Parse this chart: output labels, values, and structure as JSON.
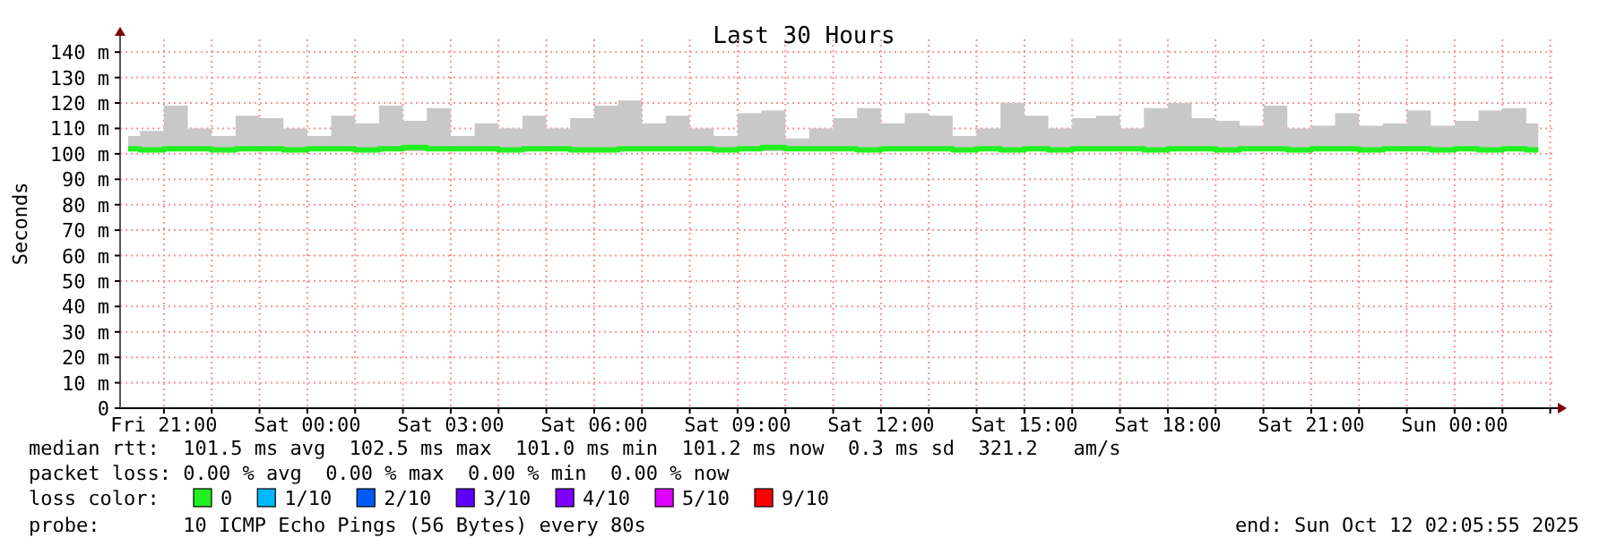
{
  "chart_data": {
    "type": "step",
    "title": "Last 30 Hours",
    "ylabel": "Seconds",
    "legend_title": "loss color:",
    "legend": "bottom",
    "grid": true,
    "xlim": [
      "2025-10-10T20:05",
      "2025-10-12T02:05"
    ],
    "xticks": [
      {
        "value": "2025-10-10T21:00",
        "label": "Fri 21:00"
      },
      {
        "value": "2025-10-10T22:00",
        "label": null
      },
      {
        "value": "2025-10-10T23:00",
        "label": null
      },
      {
        "value": "2025-10-11T00:00",
        "label": "Sat 00:00"
      },
      {
        "value": "2025-10-11T01:00",
        "label": null
      },
      {
        "value": "2025-10-11T02:00",
        "label": null
      },
      {
        "value": "2025-10-11T03:00",
        "label": "Sat 03:00"
      },
      {
        "value": "2025-10-11T04:00",
        "label": null
      },
      {
        "value": "2025-10-11T05:00",
        "label": null
      },
      {
        "value": "2025-10-11T06:00",
        "label": "Sat 06:00"
      },
      {
        "value": "2025-10-11T07:00",
        "label": null
      },
      {
        "value": "2025-10-11T08:00",
        "label": null
      },
      {
        "value": "2025-10-11T09:00",
        "label": "Sat 09:00"
      },
      {
        "value": "2025-10-11T10:00",
        "label": null
      },
      {
        "value": "2025-10-11T11:00",
        "label": null
      },
      {
        "value": "2025-10-11T12:00",
        "label": "Sat 12:00"
      },
      {
        "value": "2025-10-11T13:00",
        "label": null
      },
      {
        "value": "2025-10-11T14:00",
        "label": null
      },
      {
        "value": "2025-10-11T15:00",
        "label": "Sat 15:00"
      },
      {
        "value": "2025-10-11T16:00",
        "label": null
      },
      {
        "value": "2025-10-11T17:00",
        "label": null
      },
      {
        "value": "2025-10-11T18:00",
        "label": "Sat 18:00"
      },
      {
        "value": "2025-10-11T19:00",
        "label": null
      },
      {
        "value": "2025-10-11T20:00",
        "label": null
      },
      {
        "value": "2025-10-11T21:00",
        "label": "Sat 21:00"
      },
      {
        "value": "2025-10-11T22:00",
        "label": null
      },
      {
        "value": "2025-10-11T23:00",
        "label": null
      },
      {
        "value": "2025-10-12T00:00",
        "label": "Sun 00:00"
      },
      {
        "value": "2025-10-12T01:00",
        "label": null
      },
      {
        "value": "2025-10-12T02:00",
        "label": null
      }
    ],
    "ylim": [
      0,
      145
    ],
    "yticks": [
      {
        "value": 0,
        "label": "0"
      },
      {
        "value": 10,
        "label": "10 m"
      },
      {
        "value": 20,
        "label": "20 m"
      },
      {
        "value": 30,
        "label": "30 m"
      },
      {
        "value": 40,
        "label": "40 m"
      },
      {
        "value": 50,
        "label": "50 m"
      },
      {
        "value": 60,
        "label": "60 m"
      },
      {
        "value": 70,
        "label": "70 m"
      },
      {
        "value": 80,
        "label": "80 m"
      },
      {
        "value": 90,
        "label": "90 m"
      },
      {
        "value": 100,
        "label": "100 m"
      },
      {
        "value": 110,
        "label": "110 m"
      },
      {
        "value": 120,
        "label": "120 m"
      },
      {
        "value": 130,
        "label": "130 m"
      },
      {
        "value": 140,
        "label": "140 m"
      }
    ],
    "x": [
      "2025-10-10T20:15",
      "2025-10-10T20:45",
      "2025-10-10T21:15",
      "2025-10-10T21:45",
      "2025-10-10T22:15",
      "2025-10-10T22:45",
      "2025-10-10T23:15",
      "2025-10-10T23:45",
      "2025-10-11T00:15",
      "2025-10-11T00:45",
      "2025-10-11T01:15",
      "2025-10-11T01:45",
      "2025-10-11T02:15",
      "2025-10-11T02:45",
      "2025-10-11T03:15",
      "2025-10-11T03:45",
      "2025-10-11T04:15",
      "2025-10-11T04:45",
      "2025-10-11T05:15",
      "2025-10-11T05:45",
      "2025-10-11T06:15",
      "2025-10-11T06:45",
      "2025-10-11T07:15",
      "2025-10-11T07:45",
      "2025-10-11T08:15",
      "2025-10-11T08:45",
      "2025-10-11T09:15",
      "2025-10-11T09:45",
      "2025-10-11T10:15",
      "2025-10-11T10:45",
      "2025-10-11T11:15",
      "2025-10-11T11:45",
      "2025-10-11T12:15",
      "2025-10-11T12:45",
      "2025-10-11T13:15",
      "2025-10-11T13:45",
      "2025-10-11T14:15",
      "2025-10-11T14:45",
      "2025-10-11T15:15",
      "2025-10-11T15:45",
      "2025-10-11T16:15",
      "2025-10-11T16:45",
      "2025-10-11T17:15",
      "2025-10-11T17:45",
      "2025-10-11T18:15",
      "2025-10-11T18:45",
      "2025-10-11T19:15",
      "2025-10-11T19:45",
      "2025-10-11T20:15",
      "2025-10-11T20:45",
      "2025-10-11T21:15",
      "2025-10-11T21:45",
      "2025-10-11T22:15",
      "2025-10-11T22:45",
      "2025-10-11T23:15",
      "2025-10-11T23:45",
      "2025-10-12T00:15",
      "2025-10-12T00:45",
      "2025-10-12T01:15",
      "2025-10-12T01:45"
    ],
    "series": [
      {
        "name": "0",
        "color": "#20f020",
        "values": [
          102,
          101.5,
          102,
          102,
          101.5,
          102,
          102,
          101.5,
          102,
          102,
          101.5,
          102,
          102.5,
          102,
          102,
          102,
          101.5,
          102,
          102,
          101.5,
          101.5,
          102,
          102,
          102,
          102,
          101.5,
          102,
          102.5,
          102,
          102,
          102,
          101.5,
          102,
          102,
          102,
          101.5,
          102,
          101.5,
          102,
          101.5,
          102,
          102,
          102,
          101.5,
          102,
          102,
          101.5,
          102,
          102,
          101.5,
          102,
          102,
          101.5,
          102,
          102,
          101.5,
          102,
          101.5,
          102,
          101.5
        ],
        "lower": [
          101,
          101,
          101,
          101,
          101,
          101,
          101,
          101,
          101,
          101,
          101,
          101,
          101,
          101,
          101,
          101,
          101,
          101,
          101,
          101,
          101,
          101,
          101,
          101,
          101,
          101,
          101,
          101,
          101,
          101,
          101,
          101,
          101,
          101,
          101,
          101,
          101,
          101,
          101,
          101,
          101,
          101,
          101,
          101,
          101,
          101,
          101,
          101,
          101,
          101,
          101,
          101,
          101,
          101,
          101,
          101,
          101,
          101,
          101,
          101
        ],
        "upper": [
          107,
          109,
          119,
          110,
          107,
          115,
          114,
          110,
          107,
          115,
          112,
          119,
          113,
          118,
          107,
          112,
          110,
          115,
          110,
          114,
          119,
          121,
          112,
          115,
          110,
          107,
          116,
          117,
          106,
          110,
          114,
          118,
          112,
          116,
          115,
          107,
          110,
          120,
          115,
          110,
          114,
          115,
          110,
          118,
          120,
          114,
          113,
          111,
          119,
          110,
          111,
          116,
          111,
          112,
          117,
          111,
          113,
          117,
          118,
          112
        ]
      },
      {
        "name": "1/10",
        "color": "#00b8ff",
        "values": [
          null,
          null,
          null,
          null,
          null,
          null,
          null,
          null,
          null,
          null,
          null,
          null,
          null,
          null,
          null,
          null,
          null,
          null,
          null,
          null,
          null,
          null,
          null,
          null,
          null,
          null,
          null,
          null,
          null,
          null,
          null,
          null,
          null,
          null,
          null,
          null,
          null,
          null,
          null,
          null,
          null,
          null,
          null,
          null,
          null,
          null,
          null,
          null,
          null,
          null,
          null,
          null,
          null,
          null,
          null,
          null,
          null,
          null,
          null,
          null
        ]
      },
      {
        "name": "2/10",
        "color": "#0059ff",
        "values": [
          null,
          null,
          null,
          null,
          null,
          null,
          null,
          null,
          null,
          null,
          null,
          null,
          null,
          null,
          null,
          null,
          null,
          null,
          null,
          null,
          null,
          null,
          null,
          null,
          null,
          null,
          null,
          null,
          null,
          null,
          null,
          null,
          null,
          null,
          null,
          null,
          null,
          null,
          null,
          null,
          null,
          null,
          null,
          null,
          null,
          null,
          null,
          null,
          null,
          null,
          null,
          null,
          null,
          null,
          null,
          null,
          null,
          null,
          null,
          null
        ]
      },
      {
        "name": "3/10",
        "color": "#5e00ff",
        "values": [
          null,
          null,
          null,
          null,
          null,
          null,
          null,
          null,
          null,
          null,
          null,
          null,
          null,
          null,
          null,
          null,
          null,
          null,
          null,
          null,
          null,
          null,
          null,
          null,
          null,
          null,
          null,
          null,
          null,
          null,
          null,
          null,
          null,
          null,
          null,
          null,
          null,
          null,
          null,
          null,
          null,
          null,
          null,
          null,
          null,
          null,
          null,
          null,
          null,
          null,
          null,
          null,
          null,
          null,
          null,
          null,
          null,
          null,
          null,
          null
        ]
      },
      {
        "name": "4/10",
        "color": "#7e00ff",
        "values": [
          null,
          null,
          null,
          null,
          null,
          null,
          null,
          null,
          null,
          null,
          null,
          null,
          null,
          null,
          null,
          null,
          null,
          null,
          null,
          null,
          null,
          null,
          null,
          null,
          null,
          null,
          null,
          null,
          null,
          null,
          null,
          null,
          null,
          null,
          null,
          null,
          null,
          null,
          null,
          null,
          null,
          null,
          null,
          null,
          null,
          null,
          null,
          null,
          null,
          null,
          null,
          null,
          null,
          null,
          null,
          null,
          null,
          null,
          null,
          null
        ]
      },
      {
        "name": "5/10",
        "color": "#dd00ff",
        "values": [
          null,
          null,
          null,
          null,
          null,
          null,
          null,
          null,
          null,
          null,
          null,
          null,
          null,
          null,
          null,
          null,
          null,
          null,
          null,
          null,
          null,
          null,
          null,
          null,
          null,
          null,
          null,
          null,
          null,
          null,
          null,
          null,
          null,
          null,
          null,
          null,
          null,
          null,
          null,
          null,
          null,
          null,
          null,
          null,
          null,
          null,
          null,
          null,
          null,
          null,
          null,
          null,
          null,
          null,
          null,
          null,
          null,
          null,
          null,
          null
        ]
      },
      {
        "name": "9/10",
        "color": "#ff0000",
        "values": [
          null,
          null,
          null,
          null,
          null,
          null,
          null,
          null,
          null,
          null,
          null,
          null,
          null,
          null,
          null,
          null,
          null,
          null,
          null,
          null,
          null,
          null,
          null,
          null,
          null,
          null,
          null,
          null,
          null,
          null,
          null,
          null,
          null,
          null,
          null,
          null,
          null,
          null,
          null,
          null,
          null,
          null,
          null,
          null,
          null,
          null,
          null,
          null,
          null,
          null,
          null,
          null,
          null,
          null,
          null,
          null,
          null,
          null,
          null,
          null
        ]
      }
    ],
    "annotations": [
      "median rtt:  101.5 ms avg  102.5 ms max  101.0 ms min  101.2 ms now  0.3 ms sd  321.2   am/s",
      "packet loss: 0.00 % avg  0.00 % max  0.00 % min  0.00 % now",
      "probe:       10 ICMP Echo Pings (56 Bytes) every 80s",
      "end: Sun Oct 12 02:05:55 2025"
    ]
  }
}
